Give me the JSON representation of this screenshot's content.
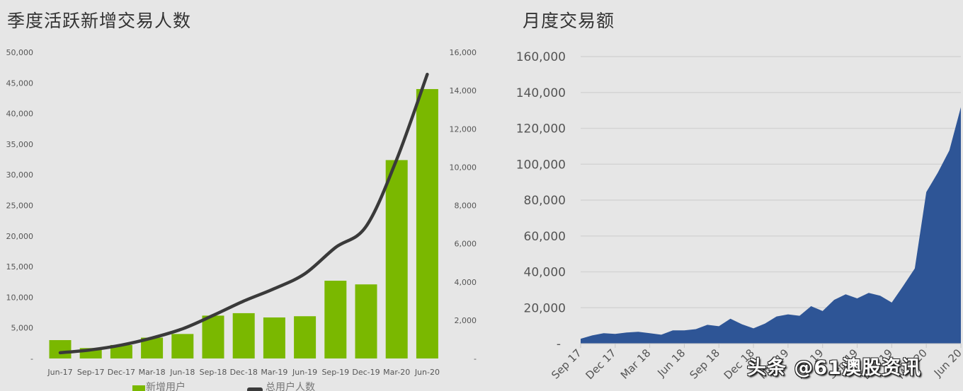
{
  "left_chart": {
    "title": "季度活跃新增交易人数",
    "left_axis_ticks": [
      "-",
      "5,000",
      "10,000",
      "15,000",
      "20,000",
      "25,000",
      "30,000",
      "35,000",
      "40,000",
      "45,000",
      "50,000"
    ],
    "right_axis_ticks": [
      "-",
      "2,000",
      "4,000",
      "6,000",
      "8,000",
      "10,000",
      "12,000",
      "14,000",
      "16,000"
    ],
    "legend": {
      "bar_label": "新增用户",
      "line_label": "总用户人数"
    }
  },
  "right_chart": {
    "title": "月度交易额",
    "y_axis_ticks": [
      "-",
      "20,000",
      "40,000",
      "60,000",
      "80,000",
      "100,000",
      "120,000",
      "140,000",
      "160,000"
    ],
    "x_axis_ticks": [
      "Sep 17",
      "Dec 17",
      "Mar 18",
      "Jun 18",
      "Sep 18",
      "Dec 18",
      "Mar 19",
      "Jun 19",
      "Sep 19",
      "Dec 19",
      "Mar 20",
      "Jun 20"
    ]
  },
  "watermark": "头条 @61澳股资讯",
  "colors": {
    "background": "#e6e6e6",
    "bar_green": "#7ab800",
    "line_dark": "#3a3a3a",
    "area_blue": "#2e5596",
    "gridline": "#d4d4d4"
  },
  "chart_data": [
    {
      "type": "bar",
      "title": "季度活跃新增交易人数",
      "xlabel": "",
      "ylabel": "",
      "categories": [
        "Jun-17",
        "Sep-17",
        "Dec-17",
        "Mar-18",
        "Jun-18",
        "Sep-18",
        "Dec-18",
        "Mar-19",
        "Jun-19",
        "Sep-19",
        "Dec-19",
        "Mar-20",
        "Jun-20"
      ],
      "series": [
        {
          "name": "新增用户",
          "type": "bar",
          "axis": "left",
          "values": [
            3000,
            1700,
            2200,
            3400,
            4000,
            7000,
            7400,
            6700,
            6900,
            12700,
            12100,
            32400,
            44000
          ]
        },
        {
          "name": "总用户人数",
          "type": "line",
          "axis": "right",
          "values": [
            300,
            450,
            700,
            1070,
            1550,
            2250,
            3000,
            3650,
            4430,
            5800,
            6900,
            10400,
            14850
          ]
        }
      ],
      "ylim_left": [
        0,
        50000
      ],
      "ylim_right": [
        0,
        16000
      ],
      "grid": false,
      "legend_position": "bottom"
    },
    {
      "type": "area",
      "title": "月度交易额",
      "xlabel": "",
      "ylabel": "",
      "x": [
        "Sep 17",
        "Oct 17",
        "Nov 17",
        "Dec 17",
        "Jan 18",
        "Feb 18",
        "Mar 18",
        "Apr 18",
        "May 18",
        "Jun 18",
        "Jul 18",
        "Aug 18",
        "Sep 18",
        "Oct 18",
        "Nov 18",
        "Dec 18",
        "Jan 19",
        "Feb 19",
        "Mar 19",
        "Apr 19",
        "May 19",
        "Jun 19",
        "Jul 19",
        "Aug 19",
        "Sep 19",
        "Oct 19",
        "Nov 19",
        "Dec 19",
        "Jan 20",
        "Feb 20",
        "Mar 20",
        "Apr 20",
        "May 20",
        "Jun 20"
      ],
      "values": [
        2700,
        4600,
        5800,
        5400,
        6200,
        6600,
        5800,
        5000,
        7400,
        7400,
        8100,
        10500,
        9700,
        13900,
        10800,
        8500,
        11200,
        15100,
        16300,
        15500,
        20900,
        18200,
        24400,
        27500,
        25200,
        28300,
        26700,
        22900,
        32200,
        41900,
        84500,
        95300,
        107700,
        131800
      ],
      "ylim": [
        0,
        160000
      ],
      "grid": true,
      "legend_position": "none"
    }
  ]
}
